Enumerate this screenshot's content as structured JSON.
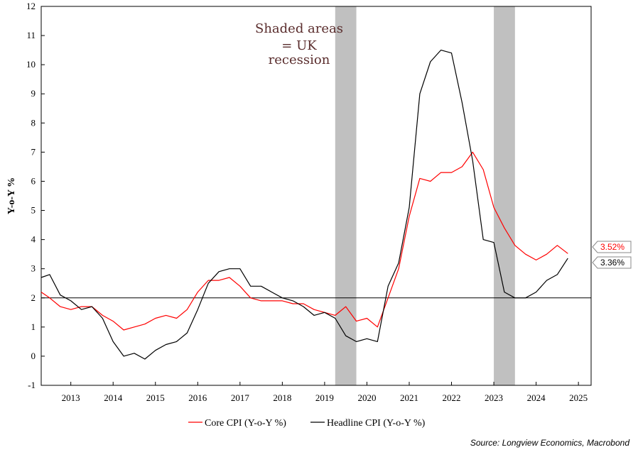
{
  "chart_data": {
    "type": "line",
    "title": "",
    "ylabel": "Y-o-Y %",
    "xlabel": "",
    "ylim": [
      -1,
      12
    ],
    "yticks": [
      -1,
      0,
      1,
      2,
      3,
      4,
      5,
      6,
      7,
      8,
      9,
      10,
      11,
      12
    ],
    "xlim": [
      2012.8,
      2025.8
    ],
    "xticks": [
      "2013",
      "2014",
      "2015",
      "2016",
      "2017",
      "2018",
      "2019",
      "2020",
      "2021",
      "2022",
      "2023",
      "2024",
      "2025"
    ],
    "reference_line": 2,
    "recessions": [
      [
        2019.75,
        2020.25
      ],
      [
        2023.5,
        2024.0
      ]
    ],
    "annotation": [
      "Shaded areas",
      "= UK",
      "recession"
    ],
    "series": [
      {
        "name": "Core CPI (Y-o-Y %)",
        "color": "#ff0000",
        "last_label": "3.52%",
        "x": [
          2012.8,
          2013.0,
          2013.25,
          2013.5,
          2013.75,
          2014.0,
          2014.25,
          2014.5,
          2014.75,
          2015.0,
          2015.25,
          2015.5,
          2015.75,
          2016.0,
          2016.25,
          2016.5,
          2016.75,
          2017.0,
          2017.25,
          2017.5,
          2017.75,
          2018.0,
          2018.25,
          2018.5,
          2018.75,
          2019.0,
          2019.25,
          2019.5,
          2019.75,
          2020.0,
          2020.25,
          2020.5,
          2020.75,
          2021.0,
          2021.25,
          2021.5,
          2021.75,
          2022.0,
          2022.25,
          2022.5,
          2022.75,
          2023.0,
          2023.25,
          2023.5,
          2023.75,
          2024.0,
          2024.25,
          2024.5,
          2024.75,
          2025.0,
          2025.25
        ],
        "y": [
          2.2,
          2.0,
          1.7,
          1.6,
          1.7,
          1.7,
          1.4,
          1.2,
          0.9,
          1.0,
          1.1,
          1.3,
          1.4,
          1.3,
          1.6,
          2.2,
          2.6,
          2.6,
          2.7,
          2.4,
          2.0,
          1.9,
          1.9,
          1.9,
          1.8,
          1.8,
          1.6,
          1.5,
          1.4,
          1.7,
          1.2,
          1.3,
          1.0,
          2.0,
          3.0,
          4.8,
          6.1,
          6.0,
          6.3,
          6.3,
          6.5,
          7.0,
          6.4,
          5.1,
          4.4,
          3.8,
          3.5,
          3.3,
          3.5,
          3.8,
          3.52
        ]
      },
      {
        "name": "Headline CPI (Y-o-Y %)",
        "color": "#000000",
        "last_label": "3.36%",
        "x": [
          2012.8,
          2013.0,
          2013.25,
          2013.5,
          2013.75,
          2014.0,
          2014.25,
          2014.5,
          2014.75,
          2015.0,
          2015.25,
          2015.5,
          2015.75,
          2016.0,
          2016.25,
          2016.5,
          2016.75,
          2017.0,
          2017.25,
          2017.5,
          2017.75,
          2018.0,
          2018.25,
          2018.5,
          2018.75,
          2019.0,
          2019.25,
          2019.5,
          2019.75,
          2020.0,
          2020.25,
          2020.5,
          2020.75,
          2021.0,
          2021.25,
          2021.5,
          2021.75,
          2022.0,
          2022.25,
          2022.5,
          2022.75,
          2023.0,
          2023.25,
          2023.5,
          2023.75,
          2024.0,
          2024.25,
          2024.5,
          2024.75,
          2025.0,
          2025.25
        ],
        "y": [
          2.7,
          2.8,
          2.1,
          1.9,
          1.6,
          1.7,
          1.3,
          0.5,
          0.0,
          0.1,
          -0.1,
          0.2,
          0.4,
          0.5,
          0.8,
          1.6,
          2.5,
          2.9,
          3.0,
          3.0,
          2.4,
          2.4,
          2.2,
          2.0,
          1.9,
          1.7,
          1.4,
          1.5,
          1.3,
          0.7,
          0.5,
          0.6,
          0.5,
          2.4,
          3.2,
          5.1,
          9.0,
          10.1,
          10.5,
          10.4,
          8.7,
          6.7,
          4.0,
          3.9,
          2.2,
          2.0,
          2.0,
          2.2,
          2.6,
          2.8,
          3.36
        ]
      }
    ],
    "legend": [
      "Core CPI (Y-o-Y %)",
      "Headline CPI (Y-o-Y %)"
    ],
    "source": "Source: Longview Economics, Macrobond"
  }
}
